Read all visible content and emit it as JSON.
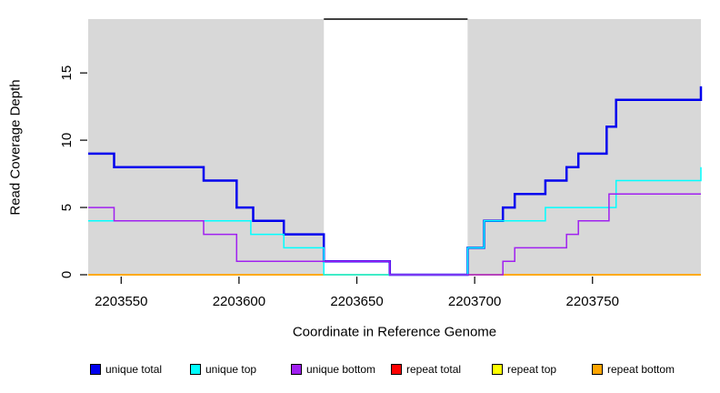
{
  "figure": {
    "background_color": "#ffffff",
    "plot_background_color": "#d8d8d8"
  },
  "chart_data": {
    "type": "line",
    "subtype": "step",
    "title": "",
    "xlabel": "Coordinate in Reference Genome",
    "ylabel": "Read Coverage Depth",
    "xlim": [
      2203536,
      2203796
    ],
    "ylim": [
      0,
      19
    ],
    "x_ticks": [
      2203550,
      2203600,
      2203650,
      2203700,
      2203750
    ],
    "y_ticks": [
      0,
      5,
      10,
      15
    ],
    "grid": "off",
    "gap_region": {
      "start": 2203636,
      "end": 2203697,
      "fill": "#ffffff",
      "top_marker_color": "#000000"
    },
    "series": [
      {
        "name": "repeat total",
        "key": "repeat-total",
        "color": "#ff0000",
        "width": 1.5,
        "points": [
          [
            2203536,
            0
          ]
        ]
      },
      {
        "name": "repeat top",
        "key": "repeat-top",
        "color": "#ffff00",
        "width": 1.5,
        "points": [
          [
            2203536,
            0
          ]
        ]
      },
      {
        "name": "repeat bottom",
        "key": "repeat-bottom",
        "color": "#ffa500",
        "width": 1.5,
        "points": [
          [
            2203536,
            0
          ]
        ]
      },
      {
        "name": "unique total",
        "key": "unique-total",
        "color": "#0000ee",
        "width": 2.5,
        "points": [
          [
            2203536,
            9
          ],
          [
            2203547,
            8
          ],
          [
            2203585,
            7
          ],
          [
            2203599,
            5
          ],
          [
            2203606,
            4
          ],
          [
            2203619,
            3
          ],
          [
            2203636,
            1
          ],
          [
            2203664,
            0
          ],
          [
            2203697,
            2
          ],
          [
            2203704,
            4
          ],
          [
            2203712,
            5
          ],
          [
            2203717,
            6
          ],
          [
            2203730,
            7
          ],
          [
            2203739,
            8
          ],
          [
            2203744,
            9
          ],
          [
            2203756,
            11
          ],
          [
            2203760,
            13
          ],
          [
            2203796,
            14
          ]
        ]
      },
      {
        "name": "unique top",
        "key": "unique-top",
        "color": "#00ffff",
        "width": 1.5,
        "points": [
          [
            2203536,
            4
          ],
          [
            2203605,
            3
          ],
          [
            2203619,
            2
          ],
          [
            2203636,
            0
          ],
          [
            2203697,
            2
          ],
          [
            2203704,
            4
          ],
          [
            2203730,
            5
          ],
          [
            2203760,
            7
          ],
          [
            2203796,
            8
          ]
        ]
      },
      {
        "name": "unique bottom",
        "key": "unique-bottom",
        "color": "#a020f0",
        "width": 1.5,
        "points": [
          [
            2203536,
            5
          ],
          [
            2203547,
            4
          ],
          [
            2203585,
            3
          ],
          [
            2203599,
            1
          ],
          [
            2203664,
            0
          ],
          [
            2203712,
            1
          ],
          [
            2203717,
            2
          ],
          [
            2203739,
            3
          ],
          [
            2203744,
            4
          ],
          [
            2203757,
            6
          ]
        ]
      }
    ]
  },
  "legend": {
    "items": [
      {
        "label": "unique total",
        "color": "#0000ee"
      },
      {
        "label": "unique top",
        "color": "#00ffff"
      },
      {
        "label": "unique bottom",
        "color": "#a020f0"
      },
      {
        "label": "repeat total",
        "color": "#ff0000"
      },
      {
        "label": "repeat top",
        "color": "#ffff00"
      },
      {
        "label": "repeat bottom",
        "color": "#ffa500"
      }
    ]
  }
}
